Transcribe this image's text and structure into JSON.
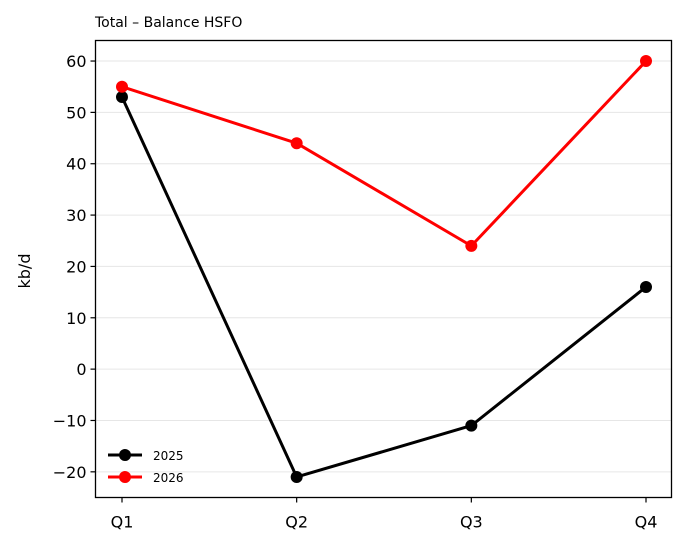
{
  "chart_data": {
    "type": "line",
    "title": "Total – Balance HSFO",
    "xlabel": "",
    "ylabel": "kb/d",
    "categories": [
      "Q1",
      "Q2",
      "Q3",
      "Q4"
    ],
    "ylim": [
      -25,
      64
    ],
    "yticks": [
      -20,
      -10,
      0,
      10,
      20,
      30,
      40,
      50,
      60
    ],
    "grid": "horizontal",
    "legend_position": "lower-left",
    "series": [
      {
        "name": "2025",
        "color": "#000000",
        "values": [
          53,
          -21,
          -11,
          16
        ]
      },
      {
        "name": "2026",
        "color": "#ff0000",
        "values": [
          55,
          44,
          24,
          60
        ]
      }
    ]
  }
}
